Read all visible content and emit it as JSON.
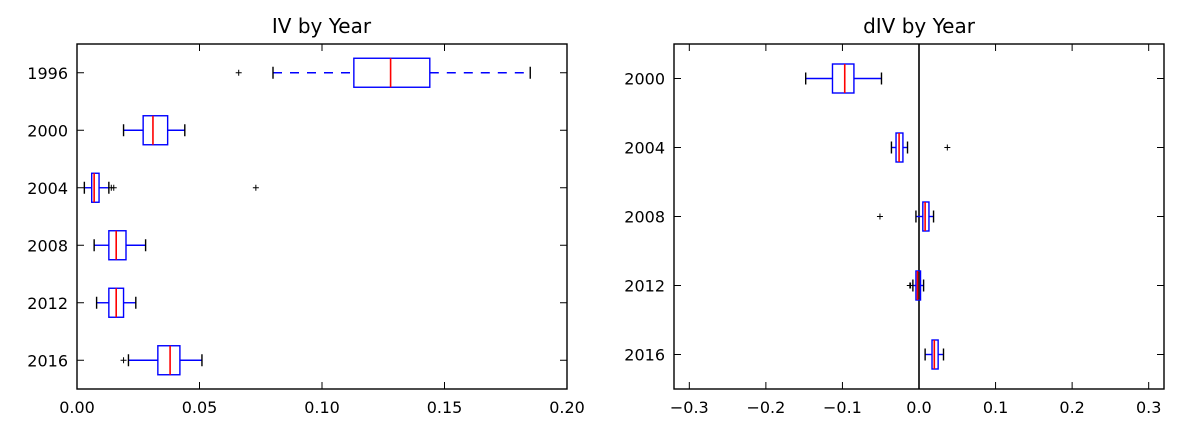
{
  "chart_data": [
    {
      "type": "boxplot",
      "orientation": "horizontal",
      "title": "IV by Year",
      "xlim": [
        0.0,
        0.2
      ],
      "xticks": [
        0.0,
        0.05,
        0.1,
        0.15,
        0.2
      ],
      "xtick_labels": [
        "0.00",
        "0.05",
        "0.10",
        "0.15",
        "0.20"
      ],
      "categories": [
        "1996",
        "2000",
        "2004",
        "2008",
        "2012",
        "2016"
      ],
      "boxes": [
        {
          "label": "1996",
          "whisker_low": 0.08,
          "q1": 0.113,
          "median": 0.128,
          "q3": 0.144,
          "whisker_high": 0.185,
          "outliers": [
            0.066
          ]
        },
        {
          "label": "2000",
          "whisker_low": 0.019,
          "q1": 0.027,
          "median": 0.031,
          "q3": 0.037,
          "whisker_high": 0.044,
          "outliers": []
        },
        {
          "label": "2004",
          "whisker_low": 0.003,
          "q1": 0.006,
          "median": 0.007,
          "q3": 0.009,
          "whisker_high": 0.013,
          "outliers": [
            0.014,
            0.015,
            0.073
          ]
        },
        {
          "label": "2008",
          "whisker_low": 0.007,
          "q1": 0.013,
          "median": 0.016,
          "q3": 0.02,
          "whisker_high": 0.028,
          "outliers": []
        },
        {
          "label": "2012",
          "whisker_low": 0.008,
          "q1": 0.013,
          "median": 0.016,
          "q3": 0.019,
          "whisker_high": 0.024,
          "outliers": []
        },
        {
          "label": "2016",
          "whisker_low": 0.021,
          "q1": 0.033,
          "median": 0.038,
          "q3": 0.042,
          "whisker_high": 0.051,
          "outliers": [
            0.019
          ]
        }
      ],
      "colors": {
        "box": "#0000ff",
        "median": "#ff0000",
        "caps": "#000000",
        "outliers": "#000000"
      },
      "grid": false
    },
    {
      "type": "boxplot",
      "orientation": "horizontal",
      "title": "dIV by Year",
      "xlim": [
        -0.32,
        0.32
      ],
      "xticks": [
        -0.3,
        -0.2,
        -0.1,
        0.0,
        0.1,
        0.2,
        0.3
      ],
      "xtick_labels": [
        "−0.3",
        "−0.2",
        "−0.1",
        "0.0",
        "0.1",
        "0.2",
        "0.3"
      ],
      "categories": [
        "2000",
        "2004",
        "2008",
        "2012",
        "2016"
      ],
      "boxes": [
        {
          "label": "2000",
          "whisker_low": -0.148,
          "q1": -0.113,
          "median": -0.097,
          "q3": -0.085,
          "whisker_high": -0.049,
          "outliers": []
        },
        {
          "label": "2004",
          "whisker_low": -0.036,
          "q1": -0.03,
          "median": -0.026,
          "q3": -0.021,
          "whisker_high": -0.015,
          "outliers": [
            0.037
          ]
        },
        {
          "label": "2008",
          "whisker_low": -0.004,
          "q1": 0.005,
          "median": 0.008,
          "q3": 0.013,
          "whisker_high": 0.019,
          "outliers": [
            -0.051
          ]
        },
        {
          "label": "2012",
          "whisker_low": -0.008,
          "q1": -0.004,
          "median": -0.002,
          "q3": 0.002,
          "whisker_high": 0.006,
          "outliers": [
            -0.012,
            -0.011
          ]
        },
        {
          "label": "2016",
          "whisker_low": 0.008,
          "q1": 0.017,
          "median": 0.02,
          "q3": 0.025,
          "whisker_high": 0.032,
          "outliers": []
        }
      ],
      "vertical_reference_line": 0.0,
      "colors": {
        "box": "#0000ff",
        "median": "#ff0000",
        "caps": "#000000",
        "outliers": "#000000",
        "reference_line": "#000000"
      },
      "grid": false
    }
  ]
}
